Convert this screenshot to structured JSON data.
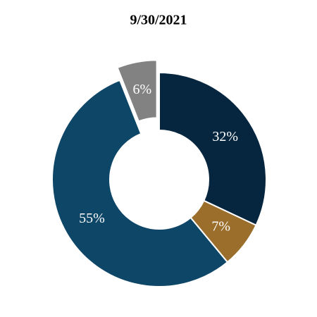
{
  "chart_data": {
    "type": "donut",
    "title": "9/30/2021",
    "values": [
      32,
      7,
      55,
      6
    ],
    "value_labels": [
      "32%",
      "7%",
      "55%",
      "6%"
    ],
    "colors": [
      "#06263f",
      "#9b6e2c",
      "#0e4668",
      "#828282"
    ],
    "explode": [
      false,
      false,
      false,
      true
    ]
  }
}
